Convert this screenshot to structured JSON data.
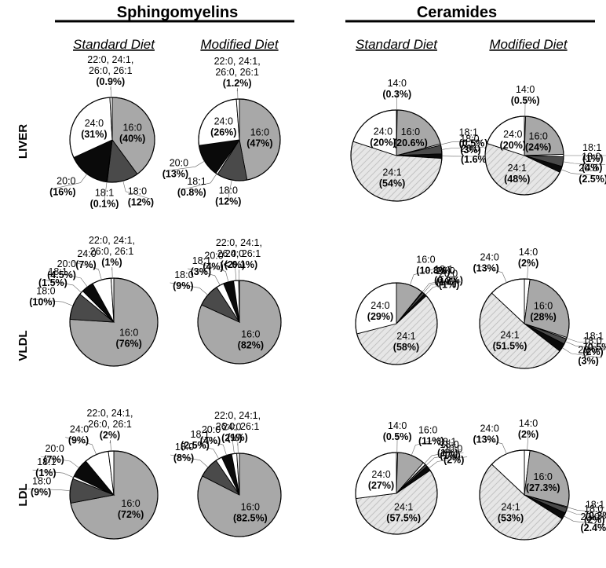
{
  "chart_data": {
    "type": "pie",
    "groups": [
      "Sphingomyelins",
      "Ceramides"
    ],
    "diets": [
      "Standard Diet",
      "Modified Diet"
    ],
    "rows": [
      "LIVER",
      "VLDL",
      "LDL"
    ],
    "patterns": {
      "16:0": "#a8a8a8",
      "18:0": "#4a4a4a",
      "18:1": "#ffffff",
      "20:0": "#0a0a0a",
      "24:0": "#ffffff",
      "24:1": "hatched-light-gray",
      "14:0": "#ffffff",
      "22:0, 24:1, 26:0, 26:1": "#ffffff"
    },
    "pies": [
      {
        "group": "Sphingomyelins",
        "diet": "Standard Diet",
        "row": "LIVER",
        "slices": [
          {
            "name": "16:0",
            "value": 40,
            "label": "(40%)"
          },
          {
            "name": "18:0",
            "value": 12,
            "label": "(12%)"
          },
          {
            "name": "18:1",
            "value": 0.1,
            "label": "(0.1%)"
          },
          {
            "name": "20:0",
            "value": 16,
            "label": "(16%)"
          },
          {
            "name": "24:0",
            "value": 31,
            "label": "(31%)"
          },
          {
            "name": "22:0, 24:1, 26:0, 26:1",
            "name_lines": [
              "22:0, 24:1,",
              "26:0, 26:1"
            ],
            "value": 0.9,
            "label": "(0.9%)"
          }
        ]
      },
      {
        "group": "Sphingomyelins",
        "diet": "Modified Diet",
        "row": "LIVER",
        "slices": [
          {
            "name": "16:0",
            "value": 47,
            "label": "(47%)"
          },
          {
            "name": "18:0",
            "value": 12,
            "label": "(12%)"
          },
          {
            "name": "18:1",
            "value": 0.8,
            "label": "(0.8%)"
          },
          {
            "name": "20:0",
            "value": 13,
            "label": "(13%)"
          },
          {
            "name": "24:0",
            "value": 26,
            "label": "(26%)"
          },
          {
            "name": "22:0, 24:1, 26:0, 26:1",
            "name_lines": [
              "22:0, 24:1,",
              "26:0, 26:1"
            ],
            "value": 1.2,
            "label": "(1.2%)"
          }
        ]
      },
      {
        "group": "Ceramides",
        "diet": "Standard Diet",
        "row": "LIVER",
        "slices": [
          {
            "name": "14:0",
            "value": 0.3,
            "label": "(0.3%)"
          },
          {
            "name": "16:0",
            "value": 20.6,
            "label": "(20.6%)"
          },
          {
            "name": "18:1",
            "value": 0.5,
            "label": "(0.5%)"
          },
          {
            "name": "18:0",
            "value": 3,
            "label": "(3%)"
          },
          {
            "name": "20:0",
            "value": 1.6,
            "label": "(1.6%)"
          },
          {
            "name": "24:1",
            "value": 54,
            "label": "(54%)"
          },
          {
            "name": "24:0",
            "value": 20,
            "label": "(20%)"
          }
        ]
      },
      {
        "group": "Ceramides",
        "diet": "Modified Diet",
        "row": "LIVER",
        "slices": [
          {
            "name": "14:0",
            "value": 0.5,
            "label": "(0.5%)"
          },
          {
            "name": "16:0",
            "value": 24,
            "label": "(24%)"
          },
          {
            "name": "18:1",
            "value": 1,
            "label": "(1%)"
          },
          {
            "name": "18:0",
            "value": 4,
            "label": "(4%)"
          },
          {
            "name": "20:0",
            "value": 2.5,
            "label": "(2.5%)"
          },
          {
            "name": "24:1",
            "value": 48,
            "label": "(48%)"
          },
          {
            "name": "24:0",
            "value": 20,
            "label": "(20%)"
          }
        ]
      },
      {
        "group": "Sphingomyelins",
        "diet": "Standard Diet",
        "row": "VLDL",
        "slices": [
          {
            "name": "16:0",
            "value": 76,
            "label": "(76%)"
          },
          {
            "name": "18:0",
            "value": 10,
            "label": "(10%)"
          },
          {
            "name": "18:1",
            "value": 1.5,
            "label": "(1.5%)"
          },
          {
            "name": "20:0",
            "value": 4.5,
            "label": "(4.5%)"
          },
          {
            "name": "24:0",
            "value": 7,
            "label": "(7%)"
          },
          {
            "name": "22:0, 24:1, 26:0, 26:1",
            "name_lines": [
              "22:0, 24:1,",
              "26:0, 26:1"
            ],
            "value": 1,
            "label": "(1%)"
          }
        ]
      },
      {
        "group": "Sphingomyelins",
        "diet": "Modified Diet",
        "row": "VLDL",
        "slices": [
          {
            "name": "16:0",
            "value": 82,
            "label": "(82%)"
          },
          {
            "name": "18:0",
            "value": 9,
            "label": "(9%)"
          },
          {
            "name": "18:1",
            "value": 3,
            "label": "(3%)"
          },
          {
            "name": "20:0",
            "value": 4,
            "label": "(4%)"
          },
          {
            "name": "24:0",
            "value": 2,
            "label": "(2%)"
          },
          {
            "name": "22:0, 24:1, 26:0, 26:1",
            "name_lines": [
              "22:0, 24:1,",
              "26:0, 26:1"
            ],
            "value": 0.1,
            "label": "(< 0.1%)"
          }
        ]
      },
      {
        "group": "Ceramides",
        "diet": "Standard Diet",
        "row": "VLDL",
        "slices": [
          {
            "name": "16:0",
            "value": 10.8,
            "label": "(10.8%)"
          },
          {
            "name": "18:1",
            "value": 0.2,
            "label": "(0.2%)"
          },
          {
            "name": "18:0",
            "value": 1,
            "label": "(1%)"
          },
          {
            "name": "20:0",
            "value": 1,
            "label": "(1%)"
          },
          {
            "name": "24:1",
            "value": 58,
            "label": "(58%)"
          },
          {
            "name": "24:0",
            "value": 29,
            "label": "(29%)"
          }
        ]
      },
      {
        "group": "Ceramides",
        "diet": "Modified Diet",
        "row": "VLDL",
        "slices": [
          {
            "name": "14:0",
            "value": 2,
            "label": "(2%)"
          },
          {
            "name": "16:0",
            "value": 28,
            "label": "(28%)"
          },
          {
            "name": "18:1",
            "value": 0.5,
            "label": "(0.5%)"
          },
          {
            "name": "18:0",
            "value": 2,
            "label": "(2%)"
          },
          {
            "name": "20:0",
            "value": 3,
            "label": "(3%)"
          },
          {
            "name": "24:1",
            "value": 51.5,
            "label": "(51.5%)"
          },
          {
            "name": "24:0",
            "value": 13,
            "label": "(13%)"
          }
        ]
      },
      {
        "group": "Sphingomyelins",
        "diet": "Standard Diet",
        "row": "LDL",
        "slices": [
          {
            "name": "16:0",
            "value": 72,
            "label": "(72%)"
          },
          {
            "name": "18:0",
            "value": 9,
            "label": "(9%)"
          },
          {
            "name": "18:1",
            "value": 1,
            "label": "(1%)"
          },
          {
            "name": "20:0",
            "value": 7,
            "label": "(7%)"
          },
          {
            "name": "24:0",
            "value": 9,
            "label": "(9%)"
          },
          {
            "name": "22:0, 24:1, 26:0, 26:1",
            "name_lines": [
              "22:0, 24:1,",
              "26:0, 26:1"
            ],
            "value": 2,
            "label": "(2%)"
          }
        ]
      },
      {
        "group": "Sphingomyelins",
        "diet": "Modified Diet",
        "row": "LDL",
        "slices": [
          {
            "name": "16:0",
            "value": 82.5,
            "label": "(82.5%)"
          },
          {
            "name": "18:0",
            "value": 8,
            "label": "(8%)"
          },
          {
            "name": "18:1",
            "value": 2.5,
            "label": "(2.5%)"
          },
          {
            "name": "20:0",
            "value": 4,
            "label": "(4%)"
          },
          {
            "name": "24:0",
            "value": 2,
            "label": "(2%)"
          },
          {
            "name": "22:0, 24:1, 26:0, 26:1",
            "name_lines": [
              "22:0, 24:1,",
              "26:0, 26:1"
            ],
            "value": 1,
            "label": "(1%)"
          }
        ]
      },
      {
        "group": "Ceramides",
        "diet": "Standard Diet",
        "row": "LDL",
        "slices": [
          {
            "name": "14:0",
            "value": 0.5,
            "label": "(0.5%)"
          },
          {
            "name": "16:0",
            "value": 11,
            "label": "(11%)"
          },
          {
            "name": "18:1",
            "value": 1,
            "label": "(1%)"
          },
          {
            "name": "18:0",
            "value": 1,
            "label": "(1%)"
          },
          {
            "name": "20:0",
            "value": 2,
            "label": "(2%)"
          },
          {
            "name": "24:1",
            "value": 57.5,
            "label": "(57.5%)"
          },
          {
            "name": "24:0",
            "value": 27,
            "label": "(27%)"
          }
        ]
      },
      {
        "group": "Ceramides",
        "diet": "Modified Diet",
        "row": "LDL",
        "slices": [
          {
            "name": "14:0",
            "value": 2,
            "label": "(2%)"
          },
          {
            "name": "16:0",
            "value": 27.3,
            "label": "(27.3%)"
          },
          {
            "name": "18:1",
            "value": 0.3,
            "label": "(0.3%)"
          },
          {
            "name": "18:0",
            "value": 2,
            "label": "(2%)"
          },
          {
            "name": "20:0",
            "value": 2.4,
            "label": "(2.4%)"
          },
          {
            "name": "24:1",
            "value": 53,
            "label": "(53%)"
          },
          {
            "name": "24:0",
            "value": 13,
            "label": "(13%)"
          }
        ]
      }
    ]
  }
}
